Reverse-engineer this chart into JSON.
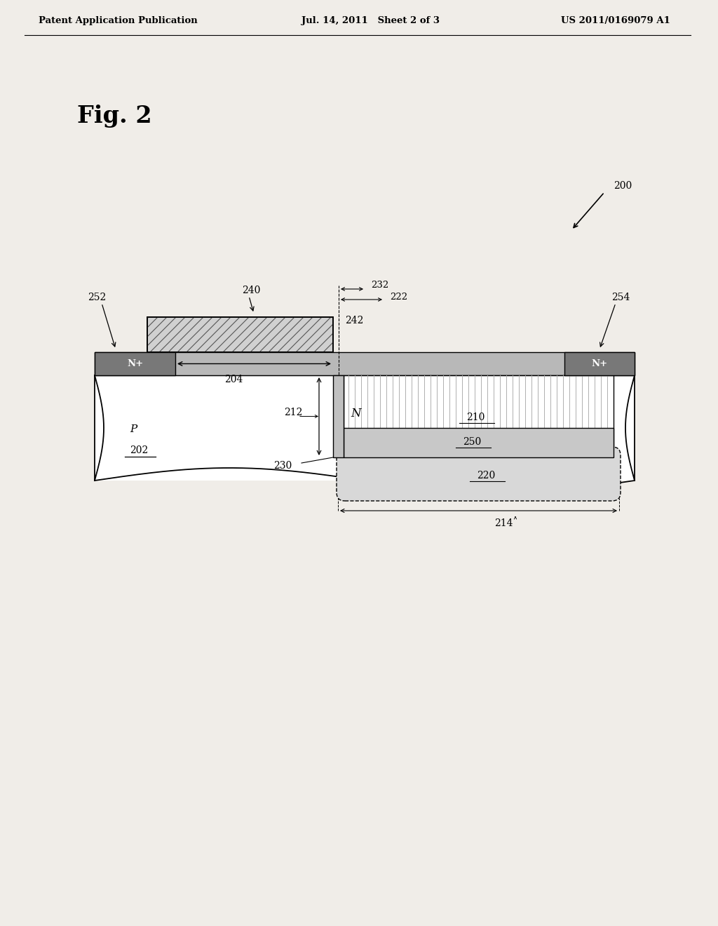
{
  "header_left": "Patent Application Publication",
  "header_center": "Jul. 14, 2011   Sheet 2 of 3",
  "header_right": "US 2011/0169079 A1",
  "fig_label": "Fig. 2",
  "ref_200": "200",
  "ref_202": "202",
  "ref_204": "204",
  "ref_210": "210",
  "ref_212": "212",
  "ref_214": "214",
  "ref_220": "220",
  "ref_222": "222",
  "ref_230": "230",
  "ref_232": "232",
  "ref_240": "240",
  "ref_242": "242",
  "ref_250": "250",
  "ref_252": "252",
  "ref_254": "254",
  "label_P": "P",
  "label_N": "N",
  "label_Nplus_left": "N+",
  "label_Nplus_right": "N+",
  "bg_color": "#f0ede8",
  "white": "#ffffff",
  "gate_fill": "#d0d0d0",
  "surf_fill": "#b8b8b8",
  "nplus_fill": "#787878",
  "nwell_fill": "#ffffff",
  "r250_fill": "#c8c8c8",
  "r220_fill": "#d8d8d8",
  "trench_fill": "#c0c0c0"
}
